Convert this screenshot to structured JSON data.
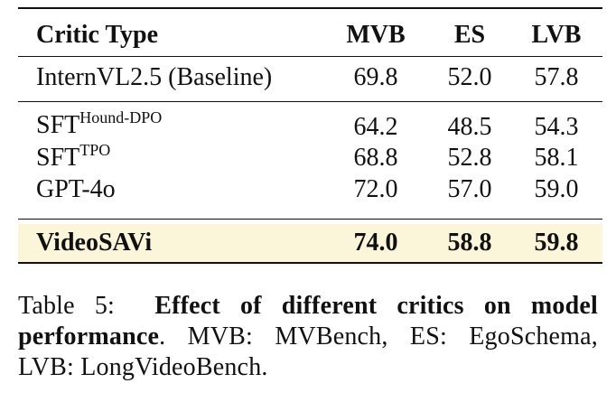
{
  "table": {
    "headers": [
      "Critic Type",
      "MVB",
      "ES",
      "LVB"
    ],
    "rows": [
      {
        "name": "InternVL2.5 (Baseline)",
        "sup": "",
        "values": [
          "69.8",
          "52.0",
          "57.8"
        ]
      },
      {
        "name": "SFT",
        "sup": "Hound-DPO",
        "values": [
          "64.2",
          "48.5",
          "54.3"
        ]
      },
      {
        "name": "SFT",
        "sup": "TPO",
        "values": [
          "68.8",
          "52.8",
          "58.1"
        ]
      },
      {
        "name": "GPT-4o",
        "sup": "",
        "values": [
          "72.0",
          "57.0",
          "59.0"
        ]
      },
      {
        "name": "VideoSAVi",
        "sup": "",
        "values": [
          "74.0",
          "58.8",
          "59.8"
        ]
      }
    ]
  },
  "caption": {
    "label": "Table 5:",
    "bold_part": "Effect of different critics on model performance",
    "rest": ". MVB: MVBench, ES: EgoSchema, LVB: LongVideoBench."
  },
  "colors": {
    "highlight": "#fbf6d9"
  }
}
